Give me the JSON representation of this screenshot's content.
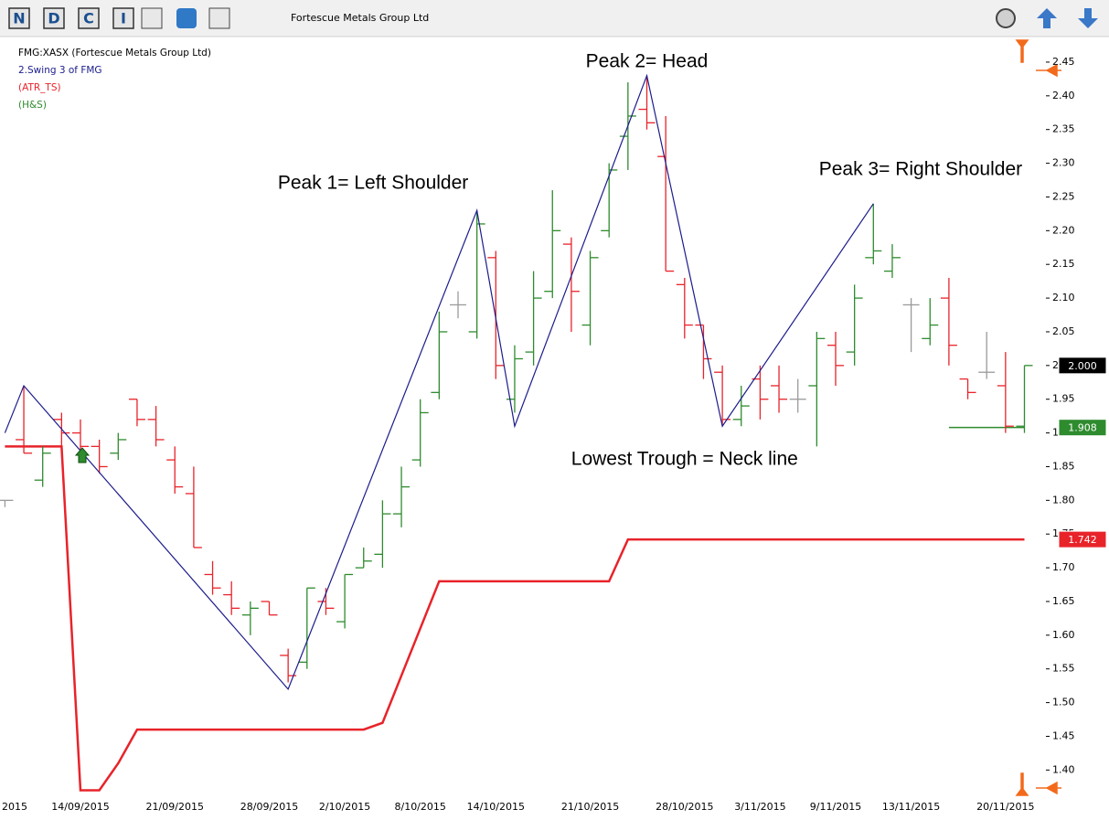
{
  "toolbar": {
    "title": "Fortescue Metals Group Ltd",
    "buttons": [
      "N",
      "D",
      "C",
      "I"
    ]
  },
  "chart_data": {
    "type": "ohlc",
    "categories": [
      "2015",
      null,
      null,
      null,
      "14/09/2015",
      null,
      null,
      null,
      null,
      "21/09/2015",
      null,
      null,
      null,
      null,
      "28/09/2015",
      null,
      null,
      null,
      "2/10/2015",
      null,
      null,
      null,
      "8/10/2015",
      null,
      null,
      null,
      "14/10/2015",
      null,
      null,
      null,
      null,
      "21/10/2015",
      null,
      null,
      null,
      null,
      "28/10/2015",
      null,
      null,
      null,
      "3/11/2015",
      null,
      null,
      null,
      "9/11/2015",
      null,
      null,
      null,
      "13/11/2015",
      null,
      null,
      null,
      null,
      "20/11/2015",
      null
    ],
    "series": [
      {
        "name": "FMG:XASX (Fortescue Metals Group Ltd)",
        "up_color": "#2e8b2e",
        "down_color": "#e8232a",
        "flat_color": "#9a9a9a",
        "open": [
          1.8,
          1.89,
          1.83,
          1.92,
          1.9,
          1.88,
          1.87,
          1.95,
          1.92,
          1.86,
          1.81,
          1.69,
          1.66,
          1.63,
          1.65,
          1.57,
          1.56,
          1.65,
          1.62,
          1.7,
          1.72,
          1.78,
          1.86,
          1.96,
          2.09,
          2.05,
          2.16,
          1.95,
          2.02,
          2.11,
          2.18,
          2.06,
          2.2,
          2.34,
          2.38,
          2.31,
          2.12,
          2.06,
          1.99,
          1.92,
          1.98,
          1.97,
          1.95,
          1.97,
          2.03,
          2.02,
          2.16,
          2.14,
          2.09,
          2.04,
          2.1,
          1.98,
          1.99,
          1.97,
          1.91
        ],
        "high": [
          1.8,
          1.97,
          1.88,
          1.93,
          1.92,
          1.89,
          1.9,
          1.95,
          1.94,
          1.88,
          1.85,
          1.71,
          1.68,
          1.65,
          1.65,
          1.58,
          1.67,
          1.67,
          1.69,
          1.73,
          1.8,
          1.85,
          1.95,
          2.08,
          2.11,
          2.23,
          2.17,
          2.03,
          2.14,
          2.26,
          2.19,
          2.17,
          2.3,
          2.42,
          2.43,
          2.37,
          2.13,
          2.06,
          2.0,
          1.97,
          2.0,
          2.0,
          1.98,
          2.05,
          2.05,
          2.12,
          2.24,
          2.18,
          2.1,
          2.1,
          2.13,
          1.98,
          2.05,
          2.02,
          2.0
        ],
        "low": [
          1.79,
          1.87,
          1.82,
          1.87,
          1.86,
          1.84,
          1.86,
          1.91,
          1.88,
          1.81,
          1.73,
          1.66,
          1.63,
          1.6,
          1.63,
          1.53,
          1.55,
          1.63,
          1.61,
          1.7,
          1.7,
          1.76,
          1.85,
          1.95,
          2.07,
          2.04,
          1.98,
          1.93,
          2.0,
          2.1,
          2.05,
          2.03,
          2.19,
          2.29,
          2.35,
          2.14,
          2.04,
          1.98,
          1.91,
          1.91,
          1.92,
          1.93,
          1.93,
          1.88,
          1.97,
          2.0,
          2.15,
          2.13,
          2.02,
          2.03,
          2.0,
          1.95,
          1.98,
          1.9,
          1.9
        ],
        "close": [
          1.8,
          1.87,
          1.87,
          1.9,
          1.88,
          1.85,
          1.89,
          1.92,
          1.89,
          1.82,
          1.73,
          1.67,
          1.64,
          1.64,
          1.63,
          1.54,
          1.67,
          1.64,
          1.69,
          1.71,
          1.78,
          1.82,
          1.93,
          2.05,
          2.09,
          2.21,
          2.0,
          2.01,
          2.1,
          2.2,
          2.11,
          2.16,
          2.29,
          2.37,
          2.36,
          2.14,
          2.06,
          2.01,
          1.92,
          1.94,
          1.95,
          1.95,
          1.95,
          2.04,
          2.0,
          2.1,
          2.17,
          2.16,
          2.09,
          2.06,
          2.03,
          1.96,
          1.99,
          1.91,
          2.0
        ]
      }
    ],
    "swing": {
      "name": "2.Swing 3  of FMG",
      "color": "#1c1c8c",
      "x": [
        0,
        1,
        15,
        25,
        27,
        34,
        38,
        46
      ],
      "values": [
        1.9,
        1.97,
        1.52,
        2.23,
        1.91,
        2.43,
        1.91,
        2.24
      ]
    },
    "atr_ts": {
      "name": "(ATR_TS)",
      "color": "#e8232a",
      "values": [
        1.88,
        1.88,
        1.88,
        1.88,
        1.37,
        1.37,
        1.41,
        1.46,
        1.46,
        1.46,
        1.46,
        1.46,
        1.46,
        1.46,
        1.46,
        1.46,
        1.46,
        1.46,
        1.46,
        1.46,
        1.47,
        1.54,
        1.61,
        1.68,
        1.68,
        1.68,
        1.68,
        1.68,
        1.68,
        1.68,
        1.68,
        1.68,
        1.68,
        1.742,
        1.742,
        1.742,
        1.742,
        1.742,
        1.742,
        1.742,
        1.742,
        1.742,
        1.742,
        1.742,
        1.742,
        1.742,
        1.742,
        1.742,
        1.742,
        1.742,
        1.742,
        1.742,
        1.742,
        1.742,
        1.742
      ]
    },
    "hs": {
      "name": "(H&S)",
      "color": "#2e8b2e",
      "values": [
        null,
        null,
        null,
        null,
        null,
        null,
        null,
        null,
        null,
        null,
        null,
        null,
        null,
        null,
        null,
        null,
        null,
        null,
        null,
        null,
        null,
        null,
        null,
        null,
        null,
        null,
        null,
        null,
        null,
        null,
        null,
        null,
        null,
        null,
        null,
        null,
        null,
        null,
        null,
        null,
        null,
        null,
        null,
        null,
        null,
        null,
        null,
        null,
        null,
        null,
        1.908,
        1.908,
        1.908,
        1.908,
        1.908
      ]
    },
    "price_markers": [
      {
        "value": 2.0,
        "label": "2.000",
        "color": "#000000"
      },
      {
        "value": 1.908,
        "label": "1.908",
        "color": "#2e8b2e"
      },
      {
        "value": 1.742,
        "label": "1.742",
        "color": "#e8232a"
      }
    ],
    "annotations": [
      {
        "text": "Peak 2= Head",
        "x": 34,
        "y": 2.45
      },
      {
        "text": "Peak 1= Left Shoulder",
        "x": 19.5,
        "y": 2.27
      },
      {
        "text": "Peak 3= Right Shoulder",
        "x": 48.5,
        "y": 2.29
      },
      {
        "text": "Lowest Trough = Neck line",
        "x": 36,
        "y": 1.86
      }
    ],
    "ylim": [
      1.3625,
      2.4879
    ],
    "yticks": [
      {
        "value": 1.4,
        "label": "1.40"
      },
      {
        "value": 1.45,
        "label": "1.45"
      },
      {
        "value": 1.5,
        "label": "1.50"
      },
      {
        "value": 1.55,
        "label": "1.55"
      },
      {
        "value": 1.6,
        "label": "1.60"
      },
      {
        "value": 1.65,
        "label": "1.65"
      },
      {
        "value": 1.7,
        "label": "1.70"
      },
      {
        "value": 1.75,
        "label": "1.75"
      },
      {
        "value": 1.8,
        "label": "1.80"
      },
      {
        "value": 1.85,
        "label": "1.85"
      },
      {
        "value": 1.9,
        "label": "1.90"
      },
      {
        "value": 1.95,
        "label": "1.95"
      },
      {
        "value": 2.0,
        "label": "2.00"
      },
      {
        "value": 2.05,
        "label": "2.05"
      },
      {
        "value": 2.1,
        "label": "2.10"
      },
      {
        "value": 2.15,
        "label": "2.15"
      },
      {
        "value": 2.2,
        "label": "2.20"
      },
      {
        "value": 2.25,
        "label": "2.25"
      },
      {
        "value": 2.3,
        "label": "2.30"
      },
      {
        "value": 2.35,
        "label": "2.35"
      },
      {
        "value": 2.4,
        "label": "2.40"
      },
      {
        "value": 2.45,
        "label": "2.45"
      }
    ]
  }
}
